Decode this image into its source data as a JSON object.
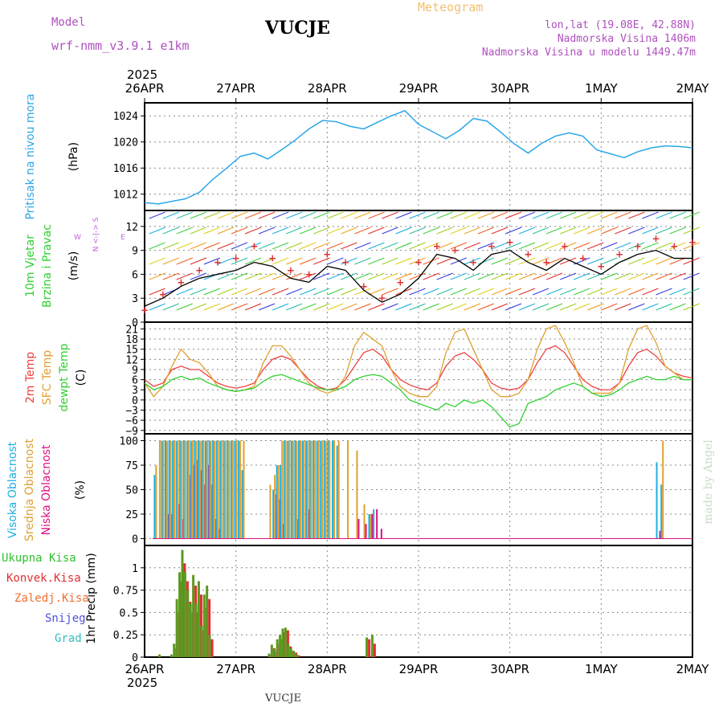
{
  "header": {
    "model_label": "Model",
    "model_name": "wrf-nmm_v3.9.1 e1km",
    "title": "VUCJE",
    "meteogram_label": "Meteogram",
    "coords": "lon,lat (19.08E, 42.88N)",
    "altitude": "Nadmorska Visina 1406m",
    "model_altitude": "Nadmorska Visina u modelu 1449.47m",
    "footer_title": "VUCJE",
    "watermark": "made by Angel",
    "year_top": "2025",
    "year_bottom": "2025"
  },
  "colors": {
    "pressure": "#2aa7e8",
    "t2m": "#f04040",
    "sfc": "#e0a030",
    "dewpt": "#30d030",
    "high_cloud": "#20b0e0",
    "mid_cloud": "#e0a030",
    "low_cloud": "#e01080",
    "total_precip": "#5a9a20",
    "conv_precip": "#e03030"
  },
  "chart_data": [
    {
      "type": "line",
      "panel": "pressure",
      "ylabel": [
        "Pritisak na nivou mora",
        "(hPa)"
      ],
      "ylim": [
        1009.5,
        1026
      ],
      "yticks": [
        1012,
        1016,
        1020,
        1024
      ],
      "x_day": [
        0,
        0.15,
        0.3,
        0.45,
        0.6,
        0.75,
        0.9,
        1.05,
        1.2,
        1.35,
        1.5,
        1.65,
        1.8,
        1.95,
        2.1,
        2.25,
        2.4,
        2.55,
        2.7,
        2.85,
        3.0,
        3.15,
        3.3,
        3.45,
        3.6,
        3.75,
        3.9,
        4.05,
        4.2,
        4.35,
        4.5,
        4.65,
        4.8,
        4.95,
        5.1,
        5.25,
        5.4,
        5.55,
        5.7,
        5.85,
        6.0
      ],
      "values": [
        1010.7,
        1010.5,
        1010.9,
        1011.3,
        1012.3,
        1014.3,
        1016.0,
        1017.8,
        1018.3,
        1017.4,
        1018.8,
        1020.3,
        1022.0,
        1023.3,
        1023.1,
        1022.4,
        1022.0,
        1023.0,
        1024.0,
        1024.8,
        1022.7,
        1021.6,
        1020.5,
        1021.8,
        1023.6,
        1023.2,
        1021.5,
        1019.7,
        1018.3,
        1019.8,
        1020.9,
        1021.4,
        1020.9,
        1018.8,
        1018.2,
        1017.6,
        1018.5,
        1019.1,
        1019.4,
        1019.3,
        1019.1
      ]
    },
    {
      "type": "line",
      "panel": "wind",
      "ylabel": [
        "10m Vjetar",
        "Brzina i Pravac",
        "(m/s)"
      ],
      "compass": [
        "N",
        "<-|->",
        "S",
        "W",
        "E"
      ],
      "ylim": [
        0,
        14
      ],
      "yticks": [
        0,
        3,
        6,
        9,
        12
      ],
      "x_day": [
        0,
        0.2,
        0.4,
        0.6,
        0.8,
        1.0,
        1.2,
        1.4,
        1.6,
        1.8,
        2.0,
        2.2,
        2.4,
        2.6,
        2.8,
        3.0,
        3.2,
        3.4,
        3.6,
        3.8,
        4.0,
        4.2,
        4.4,
        4.6,
        4.8,
        5.0,
        5.2,
        5.4,
        5.6,
        5.8,
        6.0
      ],
      "series": [
        {
          "name": "speed",
          "values": [
            2.0,
            3.0,
            4.5,
            5.5,
            6.0,
            6.5,
            7.5,
            7.0,
            5.5,
            5.0,
            7.0,
            6.5,
            4.0,
            2.5,
            3.5,
            5.5,
            8.5,
            8.0,
            6.5,
            8.5,
            9.0,
            7.5,
            6.5,
            8.0,
            7.0,
            6.0,
            7.5,
            8.5,
            9.0,
            8.0,
            8.0
          ]
        },
        {
          "name": "gust",
          "values": [
            1.5,
            3.5,
            5.0,
            6.5,
            7.5,
            8.0,
            9.5,
            8.0,
            6.5,
            6.0,
            8.5,
            7.5,
            4.5,
            3.0,
            5.0,
            7.5,
            9.5,
            9.0,
            7.5,
            9.5,
            10.0,
            8.5,
            7.5,
            9.5,
            8.0,
            7.0,
            8.5,
            9.5,
            10.5,
            9.5,
            10.0
          ]
        }
      ]
    },
    {
      "type": "line",
      "panel": "temperature",
      "ylabel": [
        "2m Temp",
        "SFC Temp",
        "dewpt Temp",
        "(C)"
      ],
      "ylim": [
        -10,
        23
      ],
      "yticks": [
        -9,
        -6,
        -3,
        0,
        3,
        6,
        9,
        12,
        15,
        18,
        21
      ],
      "x_day": [
        0,
        0.1,
        0.2,
        0.3,
        0.4,
        0.5,
        0.6,
        0.7,
        0.8,
        0.9,
        1.0,
        1.1,
        1.2,
        1.3,
        1.4,
        1.5,
        1.6,
        1.7,
        1.8,
        1.9,
        2.0,
        2.1,
        2.2,
        2.3,
        2.4,
        2.5,
        2.6,
        2.7,
        2.8,
        2.9,
        3.0,
        3.1,
        3.2,
        3.3,
        3.4,
        3.5,
        3.6,
        3.7,
        3.8,
        3.9,
        4.0,
        4.1,
        4.2,
        4.3,
        4.4,
        4.5,
        4.6,
        4.7,
        4.8,
        4.9,
        5.0,
        5.1,
        5.2,
        5.3,
        5.4,
        5.5,
        5.6,
        5.7,
        5.8,
        5.9,
        6.0
      ],
      "series": [
        {
          "name": "2m Temp",
          "values": [
            6,
            4,
            5,
            9,
            10,
            9,
            9,
            7,
            5,
            4,
            3.5,
            4,
            5,
            9,
            12,
            13,
            12,
            9,
            6,
            4,
            3,
            3.5,
            6,
            10,
            14,
            15,
            13,
            9,
            6,
            4.5,
            3.5,
            3,
            5,
            10,
            13,
            14,
            12,
            9,
            5,
            3.5,
            3,
            3.5,
            6,
            11,
            15,
            16,
            14,
            10,
            6,
            4,
            3,
            3,
            5,
            10,
            14,
            15,
            13,
            10,
            8,
            7,
            6.5
          ]
        },
        {
          "name": "SFC Temp",
          "values": [
            5,
            1,
            4,
            10,
            15,
            12,
            11,
            8,
            4,
            3,
            2.5,
            3,
            4,
            11,
            16,
            16,
            13,
            9,
            5,
            3,
            2,
            3,
            7,
            16,
            20,
            18,
            16,
            9,
            4,
            2,
            1,
            1,
            4,
            14,
            20,
            21,
            15,
            9,
            3,
            1,
            1,
            2,
            6,
            15,
            21,
            22,
            17,
            11,
            4,
            2,
            2,
            2,
            5,
            15,
            21,
            22,
            17,
            10,
            8,
            6,
            6
          ]
        },
        {
          "name": "dewpt Temp",
          "values": [
            5,
            3,
            4,
            6,
            7,
            6,
            6.5,
            5,
            4,
            3,
            2.5,
            3,
            3.5,
            5.5,
            7,
            7.5,
            6.5,
            5.5,
            4.5,
            3.5,
            3,
            3,
            4,
            6,
            7,
            7.5,
            7,
            5,
            3,
            0,
            -1,
            -2,
            -3,
            -1,
            -2,
            0,
            -1,
            0,
            -2,
            -5,
            -8,
            -7,
            -1,
            0,
            1,
            3,
            4,
            5,
            4,
            2,
            1,
            1.5,
            3,
            5,
            6,
            7,
            6,
            6,
            7,
            6,
            6
          ]
        }
      ]
    },
    {
      "type": "bar",
      "panel": "clouds",
      "ylabel": [
        "Visoka Oblacnost",
        "Srednja Oblacnost",
        "Niska Oblacnost",
        "(%)"
      ],
      "ylim": [
        -7,
        107
      ],
      "yticks": [
        0,
        25,
        50,
        75,
        100
      ],
      "x_day": [
        0.1,
        0.14,
        0.18,
        0.22,
        0.26,
        0.3,
        0.34,
        0.38,
        0.42,
        0.46,
        0.5,
        0.54,
        0.58,
        0.62,
        0.66,
        0.7,
        0.74,
        0.78,
        0.82,
        0.86,
        0.9,
        0.94,
        0.98,
        1.02,
        1.06,
        1.1,
        1.35,
        1.4,
        1.44,
        1.48,
        1.52,
        1.56,
        1.6,
        1.64,
        1.68,
        1.72,
        1.76,
        1.8,
        1.84,
        1.88,
        1.92,
        1.96,
        2.0,
        2.05,
        2.1,
        2.2,
        2.3,
        2.38,
        2.45,
        2.5,
        2.55,
        5.6,
        5.65
      ],
      "series": [
        {
          "name": "high",
          "values": [
            65,
            0,
            100,
            100,
            100,
            100,
            100,
            100,
            100,
            100,
            100,
            100,
            100,
            100,
            100,
            100,
            100,
            100,
            100,
            100,
            100,
            100,
            100,
            100,
            70,
            0,
            0,
            50,
            75,
            75,
            100,
            100,
            100,
            100,
            100,
            100,
            100,
            100,
            100,
            100,
            100,
            100,
            100,
            100,
            95,
            0,
            0,
            0,
            25,
            30,
            0,
            78,
            55
          ]
        },
        {
          "name": "mid",
          "values": [
            75,
            100,
            100,
            100,
            100,
            100,
            100,
            100,
            100,
            100,
            100,
            100,
            100,
            100,
            100,
            100,
            100,
            100,
            100,
            100,
            100,
            100,
            100,
            100,
            100,
            0,
            55,
            65,
            75,
            100,
            100,
            100,
            100,
            100,
            100,
            100,
            100,
            100,
            100,
            100,
            100,
            100,
            100,
            100,
            100,
            100,
            90,
            35,
            25,
            0,
            0,
            0,
            100
          ]
        },
        {
          "name": "low",
          "values": [
            0,
            0,
            0,
            25,
            25,
            0,
            35,
            20,
            0,
            65,
            75,
            80,
            70,
            55,
            75,
            55,
            20,
            10,
            0,
            0,
            0,
            0,
            0,
            0,
            0,
            0,
            0,
            45,
            40,
            15,
            0,
            0,
            0,
            20,
            0,
            0,
            30,
            0,
            0,
            0,
            0,
            0,
            0,
            0,
            0,
            0,
            20,
            15,
            25,
            30,
            10,
            8,
            0
          ]
        }
      ]
    },
    {
      "type": "bar",
      "panel": "precipitation",
      "ylabel": [
        "1hr Precip (mm)"
      ],
      "legend": [
        "Ukupna Kisa",
        "Konvek.Kisa",
        "Zaledj.Kisa",
        "Snijeg",
        "Grad"
      ],
      "ylim": [
        0,
        1.25
      ],
      "yticks": [
        0,
        0.25,
        0.5,
        0.75,
        1
      ],
      "x_day": [
        0.15,
        0.28,
        0.31,
        0.34,
        0.37,
        0.4,
        0.43,
        0.46,
        0.49,
        0.52,
        0.55,
        0.58,
        0.61,
        0.64,
        0.67,
        0.7,
        1.35,
        1.38,
        1.41,
        1.44,
        1.47,
        1.5,
        1.53,
        1.56,
        1.59,
        1.62,
        1.65,
        2.42,
        2.48
      ],
      "series": [
        {
          "name": "Ukupna Kisa",
          "values": [
            0.03,
            0.03,
            0.15,
            0.65,
            0.95,
            1.2,
            0.95,
            0.75,
            0.6,
            0.92,
            0.6,
            0.85,
            0.35,
            0.7,
            0.8,
            0.25,
            0.04,
            0.14,
            0.09,
            0.2,
            0.25,
            0.32,
            0.33,
            0.15,
            0.1,
            0.07,
            0.03,
            0.22,
            0.25
          ]
        },
        {
          "name": "Konvek.Kisa",
          "values": [
            0,
            0,
            0.1,
            0.5,
            0.85,
            1.05,
            0.85,
            0.62,
            0.5,
            0.8,
            0.5,
            0.7,
            0.3,
            0.55,
            0.65,
            0.2,
            0.02,
            0.1,
            0.06,
            0.15,
            0.2,
            0.28,
            0.3,
            0.12,
            0.07,
            0.05,
            0.02,
            0.2,
            0.15
          ]
        }
      ]
    }
  ],
  "x_axis": {
    "labels": [
      "26APR",
      "27APR",
      "28APR",
      "29APR",
      "30APR",
      "1MAY",
      "2MAY"
    ]
  }
}
